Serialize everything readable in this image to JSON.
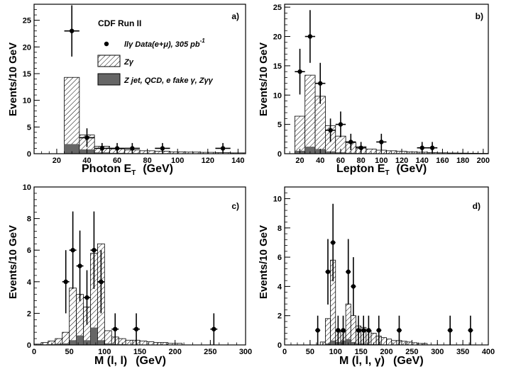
{
  "colors": {
    "signal_hatch": "#000000",
    "background_fill": "#666666",
    "frame": "#000000"
  },
  "legend": {
    "title": "CDF Run II",
    "data": "llγ Data(e+μ), 305 pb",
    "data_sup": "-1",
    "signal": "Zγ",
    "background": "Z jet, QCD, e fake γ, Zγγ"
  },
  "chart_data": [
    {
      "id": "a",
      "type": "bar",
      "panel_label": "a)",
      "xlabel": "Photon E",
      "xlabel_sub": "T",
      "xlabel_unit": "(GeV)",
      "ylabel": "Events/10 GeV",
      "xlim": [
        5,
        145
      ],
      "ylim": [
        0,
        28
      ],
      "xticks": [
        20,
        40,
        60,
        80,
        100,
        120,
        140
      ],
      "yticks": [
        0,
        5,
        10,
        15,
        20,
        25
      ],
      "bin_edges": [
        25,
        35,
        45,
        55,
        65,
        75,
        85,
        95,
        105,
        115,
        125,
        135,
        145
      ],
      "signal_total": [
        14.3,
        3.5,
        1.4,
        0.9,
        0.7,
        0.55,
        0.45,
        0.35,
        0.3,
        0.25,
        0.2,
        0.15
      ],
      "background": [
        1.8,
        0.8,
        0.25,
        0.15,
        0.1,
        0.08,
        0.05,
        0.05,
        0.03,
        0.03,
        0.02,
        0.02
      ],
      "data": {
        "x": [
          30,
          40,
          50,
          60,
          70,
          90,
          130
        ],
        "y": [
          23,
          3,
          1,
          1,
          1,
          1,
          1
        ],
        "err": [
          4.8,
          1.75,
          1,
          1,
          1,
          1,
          1
        ],
        "xerr": 5
      }
    },
    {
      "id": "b",
      "type": "bar",
      "panel_label": "b)",
      "xlabel": "Lepton E",
      "xlabel_sub": "T",
      "xlabel_unit": "(GeV)",
      "ylabel": "Events/10 GeV",
      "xlim": [
        5,
        205
      ],
      "ylim": [
        0,
        25.5
      ],
      "xticks": [
        20,
        40,
        60,
        80,
        100,
        120,
        140,
        160,
        180,
        200
      ],
      "yticks": [
        0,
        5,
        10,
        15,
        20,
        25
      ],
      "bin_edges": [
        15,
        25,
        35,
        45,
        55,
        65,
        75,
        85,
        95,
        105,
        115,
        125,
        135,
        145,
        155,
        165,
        175,
        185,
        195,
        205
      ],
      "signal_total": [
        6.4,
        13.4,
        9.8,
        4.8,
        3.0,
        1.9,
        1.2,
        0.8,
        0.6,
        0.5,
        0.4,
        0.3,
        0.25,
        0.2,
        0.15,
        0.12,
        0.1,
        0.08,
        0.06
      ],
      "background": [
        0.5,
        1.2,
        0.8,
        0.4,
        0.25,
        0.15,
        0.1,
        0.08,
        0.05,
        0.04,
        0.03,
        0.02,
        0.02,
        0.02,
        0.01,
        0.01,
        0.01,
        0.01,
        0.01
      ],
      "data": {
        "x": [
          20,
          30,
          40,
          50,
          60,
          70,
          80,
          100,
          140,
          150
        ],
        "y": [
          14,
          20,
          12,
          4,
          5,
          2,
          1,
          2,
          1,
          1
        ],
        "err": [
          3.9,
          4.5,
          3.5,
          2,
          2.2,
          1.4,
          1,
          1.4,
          1,
          1
        ],
        "xerr": 5
      }
    },
    {
      "id": "c",
      "type": "bar",
      "panel_label": "c)",
      "xlabel": "M (l, l)",
      "xlabel_sub": "",
      "xlabel_unit": "(GeV)",
      "ylabel": "Events/10 GeV",
      "xlim": [
        0,
        300
      ],
      "ylim": [
        0,
        10
      ],
      "xticks": [
        0,
        50,
        100,
        150,
        200,
        250,
        300
      ],
      "yticks": [
        0,
        2,
        4,
        6,
        8,
        10
      ],
      "bin_edges": [
        0,
        10,
        20,
        30,
        40,
        50,
        60,
        70,
        80,
        90,
        100,
        110,
        120,
        130,
        140,
        150,
        160,
        170,
        180,
        190,
        200,
        210
      ],
      "signal_total": [
        0.05,
        0.15,
        0.25,
        0.4,
        0.8,
        3.6,
        3.2,
        2.4,
        5.8,
        6.4,
        0.9,
        0.5,
        0.4,
        0.3,
        0.3,
        0.25,
        0.2,
        0.15,
        0.15,
        0.1,
        0.1
      ],
      "background": [
        0.01,
        0.03,
        0.05,
        0.08,
        0.1,
        0.3,
        0.6,
        0.3,
        1.1,
        0.3,
        0.1,
        0.05,
        0.05,
        0.03,
        0.03,
        0.02,
        0.02,
        0.01,
        0.01,
        0.01,
        0.01
      ],
      "data": {
        "x": [
          45,
          55,
          65,
          75,
          85,
          95,
          115,
          145,
          255
        ],
        "y": [
          4,
          6,
          5,
          3,
          6,
          4,
          1,
          1,
          1
        ],
        "err": [
          2,
          2.45,
          2.24,
          1.73,
          2.45,
          2,
          1,
          1,
          1
        ],
        "xerr": 5
      }
    },
    {
      "id": "d",
      "type": "bar",
      "panel_label": "d)",
      "xlabel": "M (l, l, γ)",
      "xlabel_sub": "",
      "xlabel_unit": "(GeV)",
      "ylabel": "Events/10 GeV",
      "xlim": [
        0,
        400
      ],
      "ylim": [
        0,
        10.8
      ],
      "xticks": [
        0,
        50,
        100,
        150,
        200,
        250,
        300,
        350,
        400
      ],
      "yticks": [
        0,
        2,
        4,
        6,
        8,
        10
      ],
      "bin_edges": [
        70,
        80,
        90,
        100,
        110,
        120,
        130,
        140,
        150,
        160,
        170,
        180,
        190,
        200,
        210,
        220,
        230,
        240,
        250,
        260,
        270,
        280
      ],
      "signal_total": [
        0.2,
        1.8,
        5.8,
        1.0,
        0.9,
        2.8,
        2.0,
        1.3,
        1.2,
        1.0,
        0.8,
        0.6,
        0.5,
        0.4,
        0.3,
        0.3,
        0.25,
        0.2,
        0.15,
        0.1,
        0.1
      ],
      "background": [
        0.02,
        0.1,
        0.3,
        0.2,
        0.3,
        0.4,
        0.2,
        0.1,
        0.1,
        0.05,
        0.05,
        0.04,
        0.03,
        0.02,
        0.02,
        0.02,
        0.01,
        0.01,
        0.01,
        0.01,
        0.01
      ],
      "data": {
        "x": [
          65,
          85,
          95,
          105,
          115,
          125,
          135,
          145,
          155,
          165,
          185,
          225,
          325,
          365
        ],
        "y": [
          1,
          5,
          7,
          1,
          1,
          5,
          4,
          1,
          1,
          1,
          1,
          1,
          1,
          1
        ],
        "err": [
          1,
          2.24,
          2.65,
          1,
          1,
          2.24,
          2,
          1,
          1,
          1,
          1,
          1,
          1,
          1
        ],
        "xerr": 5
      }
    }
  ]
}
